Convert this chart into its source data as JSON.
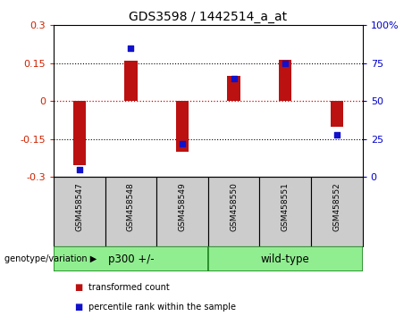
{
  "title": "GDS3598 / 1442514_a_at",
  "categories": [
    "GSM458547",
    "GSM458548",
    "GSM458549",
    "GSM458550",
    "GSM458551",
    "GSM458552"
  ],
  "bar_values": [
    -0.255,
    0.16,
    -0.2,
    0.1,
    0.165,
    -0.1
  ],
  "percentile_values": [
    5,
    85,
    22,
    65,
    75,
    28
  ],
  "group1_label": "p300 +/-",
  "group2_label": "wild-type",
  "group1_indices": [
    0,
    1,
    2
  ],
  "group2_indices": [
    3,
    4,
    5
  ],
  "bar_color": "#bb1111",
  "dot_color": "#1111cc",
  "group_color": "#90ee90",
  "label_bg_color": "#cccccc",
  "left_ylim": [
    -0.3,
    0.3
  ],
  "right_ylim": [
    0,
    100
  ],
  "left_yticks": [
    -0.3,
    -0.15,
    0,
    0.15,
    0.3
  ],
  "right_yticks": [
    0,
    25,
    50,
    75,
    100
  ],
  "hlines_dotted": [
    -0.15,
    0.15
  ],
  "zero_line_color": "#dd0000",
  "dotted_line_color": "#000000",
  "legend_tc": "transformed count",
  "legend_pr": "percentile rank within the sample",
  "genotype_label": "genotype/variation",
  "bg_color": "#ffffff",
  "tick_label_color_left": "#cc2200",
  "tick_label_color_right": "#0000cc",
  "bar_width": 0.25
}
